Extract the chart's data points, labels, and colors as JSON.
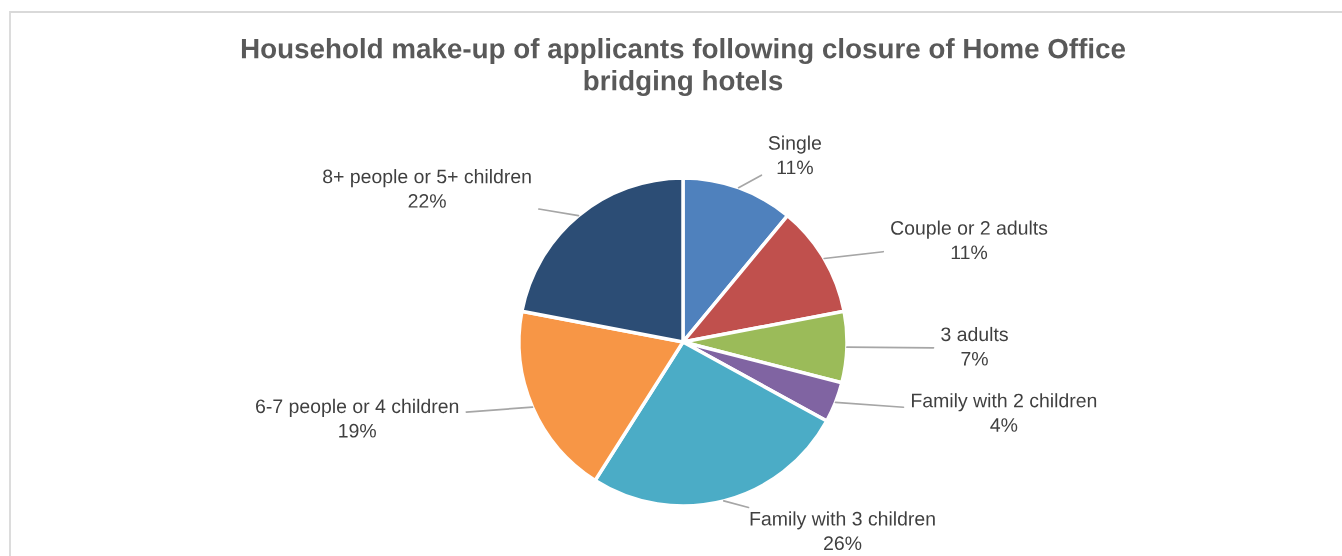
{
  "chart_data": {
    "type": "pie",
    "title": "Household make-up of applicants following closure of Home Office\nbridging hotels",
    "categories": [
      "Single",
      "Couple or 2 adults",
      "3 adults",
      "Family with 2 children",
      "Family with 3 children",
      "6-7 people or 4 children",
      "8+ people or 5+ children"
    ],
    "values": [
      11,
      11,
      7,
      4,
      26,
      19,
      22
    ],
    "colors": [
      "#4f81bd",
      "#c0504d",
      "#9bbb59",
      "#8064a2",
      "#4bacc6",
      "#f79646",
      "#2c4d75"
    ],
    "value_labels": [
      "11%",
      "11%",
      "7%",
      "4%",
      "26%",
      "19%",
      "22%"
    ]
  }
}
